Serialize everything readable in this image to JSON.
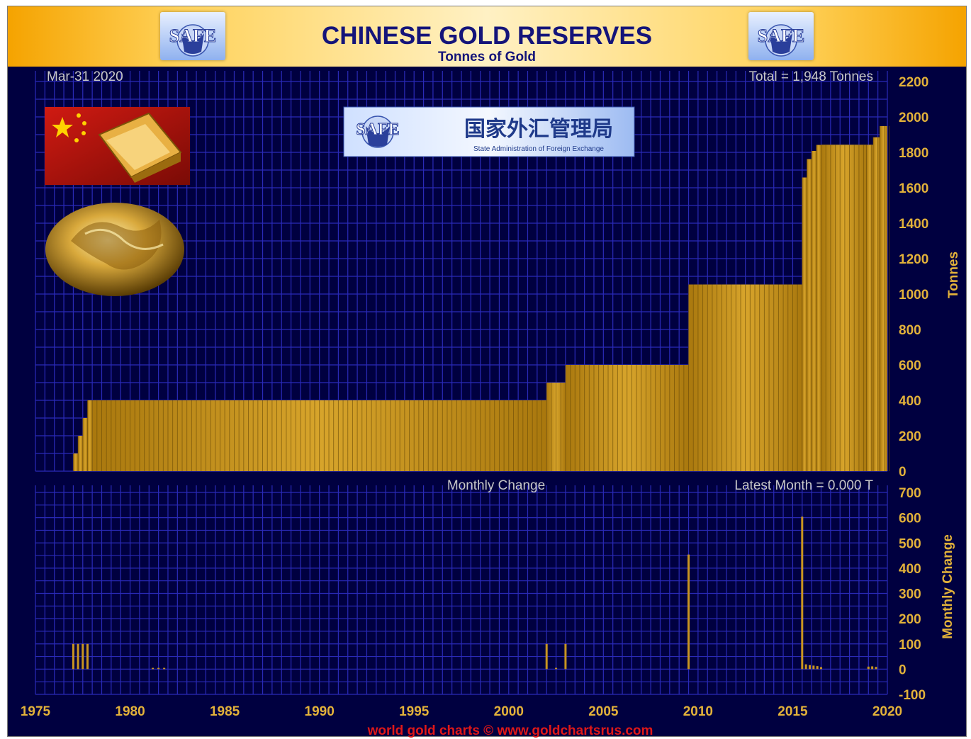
{
  "header": {
    "title": "CHINESE GOLD RESERVES",
    "subtitle": "Tonnes of Gold",
    "logo_text": "SAFE"
  },
  "colors": {
    "background": "#000040",
    "grid": "#2a2ab8",
    "bars": "#c99520",
    "axis_text": "#e3b23a",
    "header_text": "#14147a",
    "footer_text": "#e01818"
  },
  "badge": {
    "text": "SAFE",
    "chinese": "国家外汇管理局",
    "english": "State Administration of Foreign Exchange"
  },
  "chart_data": [
    {
      "type": "bar",
      "title": "CHINESE GOLD RESERVES",
      "subtitle": "Tonnes of Gold",
      "annotations": [
        "Mar-31 2020",
        "Total = 1,948 Tonnes"
      ],
      "ylabel": "Tonnes",
      "xlim": [
        1975,
        2020
      ],
      "ylim": [
        0,
        2200
      ],
      "y_ticks": [
        0,
        200,
        400,
        600,
        800,
        1000,
        1200,
        1400,
        1600,
        1800,
        2000,
        2200
      ],
      "x_ticks": [
        1975,
        1980,
        1985,
        1990,
        1995,
        2000,
        2005,
        2010,
        2015,
        2020
      ],
      "grid": true,
      "x": [
        1977.0,
        1977.25,
        1977.5,
        1977.75,
        1978.0,
        2002.0,
        2003.0,
        2009.5,
        2015.5,
        2015.75,
        2016.0,
        2016.25,
        2016.5,
        2018.9,
        2019.25,
        2019.6,
        2020.25
      ],
      "values": [
        100,
        200,
        300,
        400,
        400,
        500,
        600,
        1054,
        1658,
        1762,
        1808,
        1842,
        1843,
        1843,
        1885,
        1948,
        1948
      ]
    },
    {
      "type": "bar",
      "title": "Monthly Change",
      "annotations": [
        "Latest Month = 0.000 T"
      ],
      "ylabel": "Monthly Change",
      "xlim": [
        1975,
        2020
      ],
      "ylim": [
        -100,
        700
      ],
      "y_ticks": [
        -100,
        0,
        100,
        200,
        300,
        400,
        500,
        600,
        700
      ],
      "grid": true,
      "x": [
        1977.0,
        1977.25,
        1977.5,
        1977.75,
        1981.2,
        1981.5,
        1981.8,
        2002.0,
        2002.5,
        2003.0,
        2009.5,
        2015.5,
        2015.7,
        2015.9,
        2016.1,
        2016.3,
        2016.5,
        2019.0,
        2019.2,
        2019.4
      ],
      "values": [
        100,
        100,
        100,
        100,
        5,
        5,
        5,
        100,
        5,
        100,
        454,
        604,
        19,
        16,
        14,
        12,
        8,
        10,
        11,
        9
      ]
    }
  ],
  "footer": "world gold charts © www.goldchartsrus.com"
}
